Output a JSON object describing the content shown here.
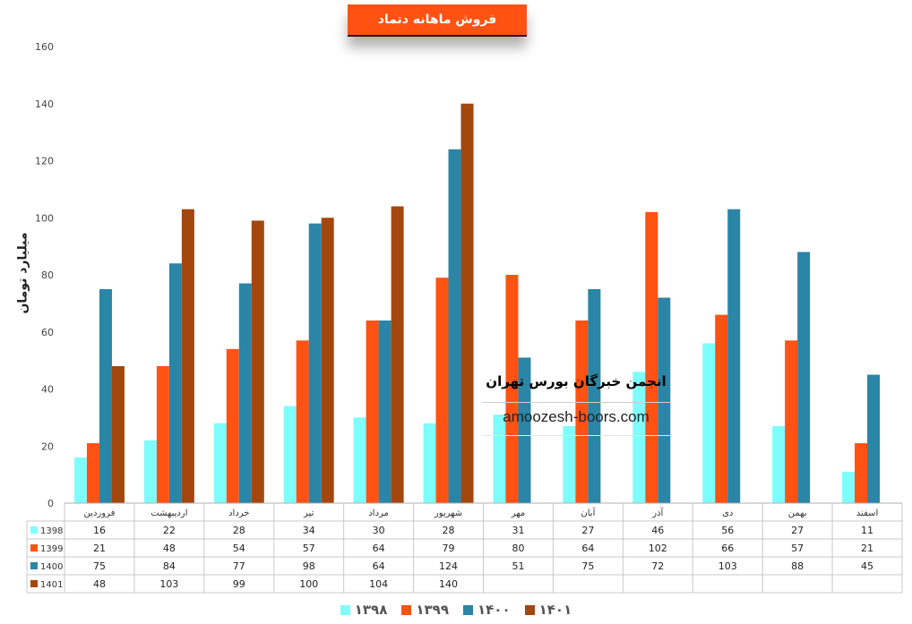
{
  "chart_data": {
    "type": "bar",
    "title": "فروش ماهانه دتماد",
    "ylabel": "میلیارد تومان",
    "ylim": [
      0,
      160
    ],
    "yticks": [
      0,
      20,
      40,
      60,
      80,
      100,
      120,
      140,
      160
    ],
    "grid": false,
    "legend_position": "bottom",
    "categories": [
      "فروردین",
      "اردیبهشت",
      "خرداد",
      "تیر",
      "مرداد",
      "شهریور",
      "مهر",
      "آبان",
      "آذر",
      "دی",
      "بهمن",
      "اسفند"
    ],
    "series": [
      {
        "name": "1398",
        "legend_label": "۱۳۹۸",
        "color": "#7ffcfc",
        "values": [
          16,
          22,
          28,
          34,
          30,
          28,
          31,
          27,
          46,
          56,
          27,
          11
        ]
      },
      {
        "name": "1399",
        "legend_label": "۱۳۹۹",
        "color": "#ff5213",
        "values": [
          21,
          48,
          54,
          57,
          64,
          79,
          80,
          64,
          102,
          66,
          57,
          21
        ]
      },
      {
        "name": "1400",
        "legend_label": "۱۴۰۰",
        "color": "#2a85a6",
        "values": [
          75,
          84,
          77,
          98,
          64,
          124,
          51,
          75,
          72,
          103,
          88,
          45
        ]
      },
      {
        "name": "1401",
        "legend_label": "۱۴۰۱",
        "color": "#a3470f",
        "values": [
          48,
          103,
          99,
          100,
          104,
          140,
          null,
          null,
          null,
          null,
          null,
          null
        ]
      }
    ]
  },
  "watermark": {
    "line1": "انجمن خبرگان بورس تهران",
    "line2": "amoozesh-boors.com"
  }
}
